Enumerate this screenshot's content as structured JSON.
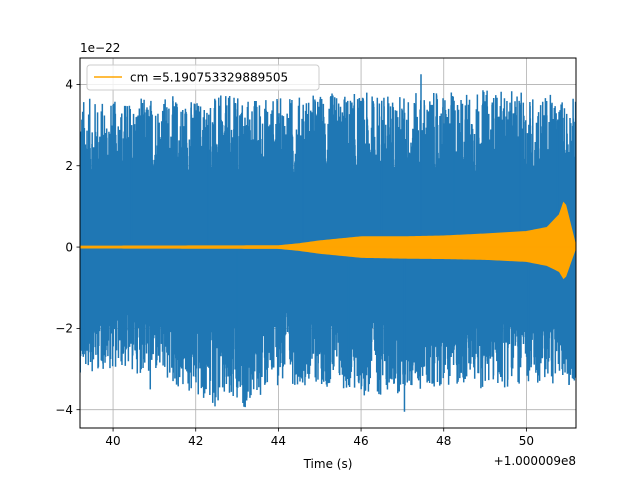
{
  "chart_data": {
    "type": "line",
    "title": "",
    "xlabel": "Time (s)",
    "ylabel": "",
    "x_offset_label": "+1.000009e8",
    "y_scale_label": "1e−22",
    "xlim": [
      39.2,
      51.2
    ],
    "ylim": [
      -4.45,
      4.65
    ],
    "x_ticks": [
      40,
      42,
      44,
      46,
      48,
      50
    ],
    "x_tick_labels": [
      "40",
      "42",
      "44",
      "46",
      "48",
      "50"
    ],
    "y_ticks": [
      -4,
      -2,
      0,
      2,
      4
    ],
    "y_tick_labels": [
      "−4",
      "−2",
      "0",
      "2",
      "4"
    ],
    "grid": true,
    "legend_position": "top-left",
    "series": [
      {
        "color": "#1f77b4",
        "kind": "noise",
        "x_range": [
          39.2,
          51.2
        ],
        "envelope": {
          "x": [
            39.2,
            40,
            41,
            42,
            43,
            44,
            45,
            46,
            47,
            48,
            49,
            50,
            51.2
          ],
          "high": [
            3.3,
            3.2,
            3.35,
            3.3,
            3.35,
            3.3,
            3.4,
            3.4,
            3.4,
            3.4,
            3.5,
            3.4,
            3.3
          ],
          "low": [
            -2.7,
            -2.6,
            -2.8,
            -3.4,
            -3.7,
            -3.0,
            -3.0,
            -3.3,
            -3.2,
            -3.0,
            -3.1,
            -3.0,
            -3.0
          ]
        },
        "spikes": [
          {
            "x": 39.28,
            "y": 3.1
          },
          {
            "x": 39.28,
            "y": -2.7
          },
          {
            "x": 40.45,
            "y": 3.0
          },
          {
            "x": 40.9,
            "y": -3.5
          },
          {
            "x": 42.3,
            "y": 3.0
          },
          {
            "x": 43.0,
            "y": -3.7
          },
          {
            "x": 44.6,
            "y": 3.5
          },
          {
            "x": 45.7,
            "y": -3.4
          },
          {
            "x": 46.5,
            "y": 3.6
          },
          {
            "x": 47.05,
            "y": -4.05
          },
          {
            "x": 47.45,
            "y": 4.25
          },
          {
            "x": 48.25,
            "y": 3.6
          },
          {
            "x": 49.85,
            "y": 3.5
          },
          {
            "x": 50.05,
            "y": -3.3
          },
          {
            "x": 50.75,
            "y": 3.1
          }
        ]
      },
      {
        "name": "cm =5.190753329889505",
        "color": "#ffa500",
        "kind": "chirp",
        "amplitude": {
          "x": [
            39.2,
            44.0,
            44.5,
            45.0,
            45.5,
            46.0,
            47.0,
            48.0,
            49.0,
            50.0,
            50.5,
            50.8,
            50.92,
            51.2
          ],
          "high": [
            0.02,
            0.03,
            0.08,
            0.15,
            0.2,
            0.25,
            0.25,
            0.27,
            0.32,
            0.38,
            0.48,
            0.8,
            1.15,
            0.0
          ],
          "low": [
            -0.02,
            -0.03,
            -0.08,
            -0.15,
            -0.2,
            -0.25,
            -0.27,
            -0.28,
            -0.3,
            -0.35,
            -0.45,
            -0.6,
            -0.8,
            0.0
          ]
        }
      }
    ]
  }
}
